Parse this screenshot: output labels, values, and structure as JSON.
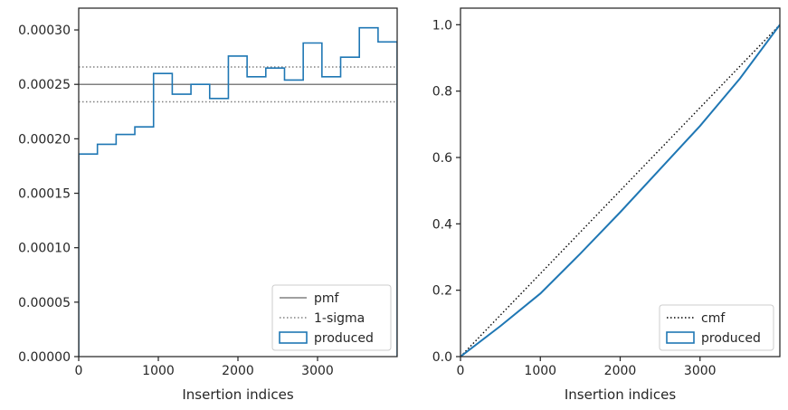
{
  "chart_data": [
    {
      "type": "histogram",
      "xlabel": "Insertion indices",
      "ylabel": "",
      "xlim": [
        0,
        4000
      ],
      "ylim": [
        0,
        0.00032
      ],
      "xticks": [
        0,
        1000,
        2000,
        3000
      ],
      "xtick_labels": [
        "0",
        "1000",
        "2000",
        "3000"
      ],
      "yticks": [
        0,
        5e-05,
        0.0001,
        0.00015,
        0.0002,
        0.00025,
        0.0003
      ],
      "ytick_labels": [
        "0.00000",
        "0.00005",
        "0.00010",
        "0.00015",
        "0.00020",
        "0.00025",
        "0.00030"
      ],
      "grid": false,
      "legend_position": "lower-right",
      "hlines": [
        {
          "name": "pmf",
          "y": 0.00025,
          "style": "solid",
          "color": "#808080"
        },
        {
          "name": "1-sigma",
          "y": 0.000266,
          "style": "dotted",
          "color": "#808080"
        },
        {
          "name": "1-sigma",
          "y": 0.000234,
          "style": "dotted",
          "color": "#808080"
        }
      ],
      "legend": [
        {
          "label": "pmf",
          "kind": "line",
          "style": "solid",
          "color": "#808080"
        },
        {
          "label": "1-sigma",
          "kind": "line",
          "style": "dotted",
          "color": "#808080"
        },
        {
          "label": "produced",
          "kind": "patch",
          "color": "#1f77b4"
        }
      ],
      "series": [
        {
          "name": "produced",
          "color": "#1f77b4",
          "bin_edges": [
            0,
            235,
            470,
            705,
            940,
            1175,
            1410,
            1645,
            1880,
            2115,
            2350,
            2585,
            2820,
            3055,
            3290,
            3525,
            3760,
            4000
          ],
          "values": [
            0.000186,
            0.000195,
            0.000204,
            0.000211,
            0.00026,
            0.000241,
            0.00025,
            0.000237,
            0.000276,
            0.000257,
            0.000265,
            0.000254,
            0.000288,
            0.000257,
            0.000275,
            0.000302,
            0.000289
          ]
        }
      ]
    },
    {
      "type": "line",
      "xlabel": "Insertion indices",
      "ylabel": "",
      "xlim": [
        0,
        4000
      ],
      "ylim": [
        0,
        1.05
      ],
      "xticks": [
        0,
        1000,
        2000,
        3000
      ],
      "xtick_labels": [
        "0",
        "1000",
        "2000",
        "3000"
      ],
      "yticks": [
        0,
        0.2,
        0.4,
        0.6,
        0.8,
        1.0
      ],
      "ytick_labels": [
        "0.0",
        "0.2",
        "0.4",
        "0.6",
        "0.8",
        "1.0"
      ],
      "grid": false,
      "legend_position": "lower-right",
      "legend": [
        {
          "label": "cmf",
          "kind": "line",
          "style": "dotted",
          "color": "#000000"
        },
        {
          "label": "produced",
          "kind": "patch",
          "color": "#1f77b4"
        }
      ],
      "series": [
        {
          "name": "cmf",
          "style": "dotted",
          "color": "#000000",
          "x": [
            0,
            4000
          ],
          "y": [
            0,
            1.0
          ]
        },
        {
          "name": "produced",
          "color": "#1f77b4",
          "x": [
            0,
            500,
            1000,
            1500,
            2000,
            2500,
            3000,
            3500,
            4000
          ],
          "y": [
            0,
            0.092,
            0.19,
            0.31,
            0.435,
            0.565,
            0.695,
            0.838,
            1.0
          ]
        }
      ]
    }
  ]
}
